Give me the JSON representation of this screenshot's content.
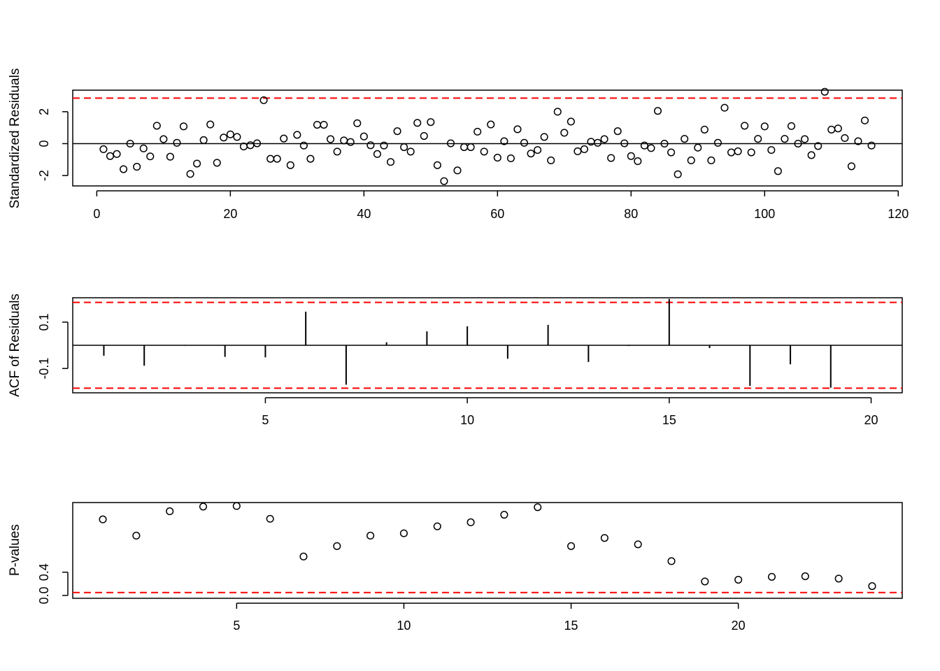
{
  "chart_data": [
    {
      "type": "scatter",
      "ylabel": "Standardized Residuals",
      "xlim": [
        -3.6,
        120.6
      ],
      "ylim": [
        -2.65,
        3.35
      ],
      "xticks": [
        0,
        20,
        40,
        60,
        80,
        100,
        120
      ],
      "xtick_labels": [
        "0",
        "20",
        "40",
        "60",
        "80",
        "100",
        "120"
      ],
      "yticks": [
        -2,
        0,
        2
      ],
      "ytick_labels": [
        "-2",
        "0",
        "2"
      ],
      "ref_lines": [
        {
          "y": 0,
          "color": "#000000",
          "style": "solid"
        },
        {
          "y": 2.85,
          "color": "#ff0000",
          "style": "dashed"
        }
      ],
      "x": [
        1,
        2,
        3,
        4,
        5,
        6,
        7,
        8,
        9,
        10,
        11,
        12,
        13,
        14,
        15,
        16,
        17,
        18,
        19,
        20,
        21,
        22,
        23,
        24,
        25,
        26,
        27,
        28,
        29,
        30,
        31,
        32,
        33,
        34,
        35,
        36,
        37,
        38,
        39,
        40,
        41,
        42,
        43,
        44,
        45,
        46,
        47,
        48,
        49,
        50,
        51,
        52,
        53,
        54,
        55,
        56,
        57,
        58,
        59,
        60,
        61,
        62,
        63,
        64,
        65,
        66,
        67,
        68,
        69,
        70,
        71,
        72,
        73,
        74,
        75,
        76,
        77,
        78,
        79,
        80,
        81,
        82,
        83,
        84,
        85,
        86,
        87,
        88,
        89,
        90,
        91,
        92,
        93,
        94,
        95,
        96,
        97,
        98,
        99,
        100,
        101,
        102,
        103,
        104,
        105,
        106,
        107,
        108,
        109,
        110,
        111,
        112,
        113,
        114,
        115,
        116
      ],
      "y": [
        -0.35,
        -0.78,
        -0.65,
        -1.6,
        0,
        -1.45,
        -0.3,
        -0.8,
        1.12,
        0.28,
        -0.82,
        0.05,
        1.08,
        -1.9,
        -1.25,
        0.22,
        1.2,
        -1.2,
        0.38,
        0.58,
        0.42,
        -0.18,
        -0.1,
        0.02,
        2.72,
        -0.95,
        -0.95,
        0.32,
        -1.35,
        0.55,
        -0.12,
        -0.95,
        1.18,
        1.18,
        0.28,
        -0.5,
        0.2,
        0.1,
        1.28,
        0.45,
        -0.1,
        -0.65,
        -0.12,
        -1.15,
        0.78,
        -0.22,
        -0.5,
        1.3,
        0.48,
        1.35,
        -1.35,
        -2.35,
        0.02,
        -1.68,
        -0.22,
        -0.22,
        0.75,
        -0.5,
        1.2,
        -0.88,
        0.15,
        -0.92,
        0.9,
        0.05,
        -0.62,
        -0.4,
        0.42,
        -1.05,
        2,
        0.68,
        1.38,
        -0.48,
        -0.35,
        0.12,
        0.05,
        0.28,
        -0.9,
        0.78,
        0.02,
        -0.78,
        -1.1,
        -0.12,
        -0.28,
        2.05,
        0,
        -0.55,
        -1.92,
        0.3,
        -1.05,
        -0.25,
        0.88,
        -1.05,
        0.05,
        2.25,
        -0.55,
        -0.48,
        1.12,
        -0.55,
        0.3,
        1.08,
        -0.4,
        -1.72,
        0.3,
        1.1,
        0,
        0.28,
        -0.72,
        -0.15,
        3.25,
        0.88,
        0.95,
        0.35,
        -1.42,
        0.15,
        1.45,
        -0.12
      ]
    },
    {
      "type": "bar",
      "ylabel": "ACF of Residuals",
      "xlim": [
        0.23,
        20.77
      ],
      "ylim": [
        -0.205,
        0.205
      ],
      "xticks": [
        5,
        10,
        15,
        20
      ],
      "xtick_labels": [
        "5",
        "10",
        "15",
        "20"
      ],
      "yticks": [
        -0.1,
        0.1
      ],
      "ytick_labels": [
        "-0.1",
        "0.1"
      ],
      "ref_lines": [
        {
          "y": 0,
          "color": "#000000",
          "style": "solid"
        },
        {
          "y": 0.185,
          "color": "#ff0000",
          "style": "dashed"
        },
        {
          "y": -0.185,
          "color": "#ff0000",
          "style": "dashed"
        }
      ],
      "x": [
        1,
        2,
        3,
        4,
        5,
        6,
        7,
        8,
        9,
        10,
        11,
        12,
        13,
        14,
        15,
        16,
        17,
        18,
        19,
        20
      ],
      "values": [
        -0.045,
        -0.088,
        -0.002,
        -0.05,
        -0.052,
        0.145,
        -0.17,
        0.013,
        0.06,
        0.082,
        -0.058,
        0.088,
        -0.072,
        -0.003,
        0.2,
        -0.012,
        -0.175,
        -0.082,
        -0.183,
        -0.001
      ]
    },
    {
      "type": "scatter",
      "ylabel": "P-values",
      "xlim": [
        0.1,
        24.9
      ],
      "ylim": [
        -0.05,
        1.6
      ],
      "xticks": [
        5,
        10,
        15,
        20
      ],
      "xtick_labels": [
        "5",
        "10",
        "15",
        "20"
      ],
      "yticks": [
        0,
        0.4
      ],
      "ytick_labels": [
        "0.0",
        "0.4"
      ],
      "ref_lines": [
        {
          "y": 0.05,
          "color": "#ff0000",
          "style": "dashed"
        }
      ],
      "x": [
        1,
        2,
        3,
        4,
        5,
        6,
        7,
        8,
        9,
        10,
        11,
        12,
        13,
        14,
        15,
        16,
        17,
        18,
        19,
        20,
        21,
        22,
        23,
        24
      ],
      "y": [
        1.31,
        1.03,
        1.45,
        1.53,
        1.54,
        1.32,
        0.67,
        0.85,
        1.03,
        1.07,
        1.19,
        1.26,
        1.39,
        1.52,
        0.85,
        0.99,
        0.88,
        0.59,
        0.24,
        0.27,
        0.32,
        0.33,
        0.29,
        0.16
      ]
    }
  ]
}
